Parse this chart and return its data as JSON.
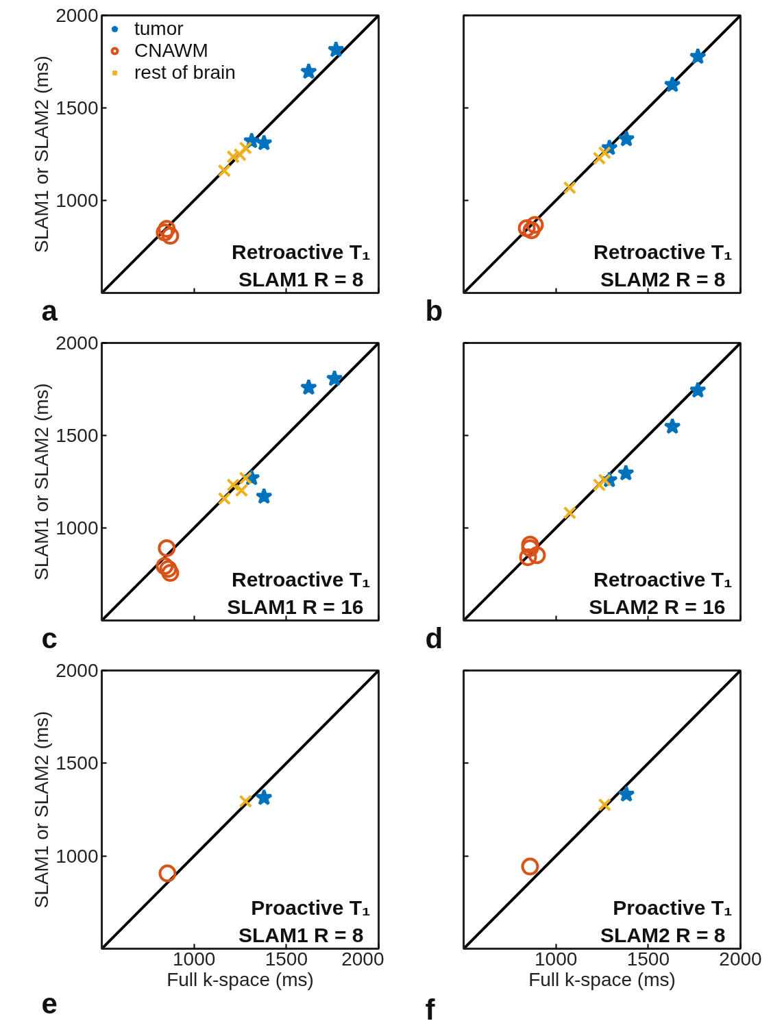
{
  "chart_data": [
    {
      "type": "scatter",
      "ylabel": "SLAM1 or SLAM2 (ms)",
      "xlim": [
        500,
        2000
      ],
      "ylim": [
        500,
        2000
      ],
      "xticks": [
        1000,
        1500,
        2000
      ],
      "yticks": [
        1000,
        1500,
        2000
      ],
      "tick_labels": "y",
      "grid": false,
      "legend": "top left",
      "annotations": [
        "Retroactive T₁",
        "SLAM1 R = 8",
        "a"
      ],
      "series": [
        {
          "name": "tumor",
          "color": "#0072bd",
          "marker": "star",
          "x": [
            1769,
            1621,
            1312,
            1379
          ],
          "values": [
            1814,
            1696,
            1321,
            1310
          ]
        },
        {
          "name": "CNAWM",
          "color": "#d95319",
          "marker": "circle",
          "x": [
            852,
            871,
            841
          ],
          "values": [
            846,
            809,
            827
          ]
        },
        {
          "name": "rest of brain",
          "color": "#edb120",
          "marker": "cross",
          "x": [
            1164,
            1212,
            1249,
            1279
          ],
          "values": [
            1161,
            1236,
            1247,
            1284
          ]
        },
        {
          "type": "line",
          "color": "#000000",
          "x": [
            500,
            2000
          ],
          "values": [
            500,
            2000
          ]
        }
      ]
    },
    {
      "type": "scatter",
      "xlim": [
        500,
        2000
      ],
      "ylim": [
        500,
        2000
      ],
      "xticks": [
        1000,
        1500,
        2000
      ],
      "yticks": [
        1000,
        1500,
        2000
      ],
      "tick_labels": false,
      "grid": false,
      "legend": false,
      "annotations": [
        "Retroactive T₁",
        "SLAM2 R = 8",
        "b"
      ],
      "series": [
        {
          "color": "#0072bd",
          "marker": "star",
          "x": [
            1769,
            1631,
            1382,
            1290
          ],
          "values": [
            1777,
            1625,
            1332,
            1284
          ]
        },
        {
          "color": "#d95319",
          "marker": "circle",
          "x": [
            842,
            886,
            868
          ],
          "values": [
            850,
            868,
            839
          ]
        },
        {
          "color": "#edb120",
          "marker": "cross",
          "x": [
            1075,
            1235,
            1264
          ],
          "values": [
            1069,
            1228,
            1258
          ]
        },
        {
          "type": "line",
          "color": "#000000",
          "x": [
            500,
            2000
          ],
          "values": [
            500,
            2000
          ]
        }
      ]
    },
    {
      "type": "scatter",
      "ylabel": "SLAM1 or SLAM2 (ms)",
      "xlim": [
        500,
        2000
      ],
      "ylim": [
        500,
        2000
      ],
      "xticks": [
        1000,
        1500,
        2000
      ],
      "yticks": [
        1000,
        1500,
        2000
      ],
      "tick_labels": "y",
      "grid": false,
      "legend": false,
      "annotations": [
        "Retroactive T₁",
        "SLAM1 R = 16",
        "c"
      ],
      "series": [
        {
          "color": "#0072bd",
          "marker": "star",
          "x": [
            1761,
            1621,
            1312,
            1379
          ],
          "values": [
            1807,
            1759,
            1270,
            1170
          ]
        },
        {
          "color": "#d95319",
          "marker": "circle",
          "x": [
            852,
            841,
            871,
            860
          ],
          "values": [
            891,
            794,
            757,
            779
          ]
        },
        {
          "color": "#edb120",
          "marker": "cross",
          "x": [
            1164,
            1212,
            1257,
            1279
          ],
          "values": [
            1159,
            1233,
            1203,
            1270
          ]
        },
        {
          "type": "line",
          "color": "#000000",
          "x": [
            500,
            2000
          ],
          "values": [
            500,
            2000
          ]
        }
      ]
    },
    {
      "type": "scatter",
      "xlim": [
        500,
        2000
      ],
      "ylim": [
        500,
        2000
      ],
      "xticks": [
        1000,
        1500,
        2000
      ],
      "yticks": [
        1000,
        1500,
        2000
      ],
      "tick_labels": false,
      "grid": false,
      "legend": false,
      "annotations": [
        "Retroactive T₁",
        "SLAM2 R = 16",
        "d"
      ],
      "series": [
        {
          "color": "#0072bd",
          "marker": "star",
          "x": [
            1769,
            1631,
            1379,
            1290
          ],
          "values": [
            1744,
            1548,
            1296,
            1259
          ]
        },
        {
          "color": "#d95319",
          "marker": "circle",
          "x": [
            860,
            849,
            897,
            860
          ],
          "values": [
            910,
            842,
            853,
            891
          ]
        },
        {
          "color": "#edb120",
          "marker": "cross",
          "x": [
            1075,
            1235,
            1264
          ],
          "values": [
            1082,
            1233,
            1259
          ]
        },
        {
          "type": "line",
          "color": "#000000",
          "x": [
            500,
            2000
          ],
          "values": [
            500,
            2000
          ]
        }
      ]
    },
    {
      "type": "scatter",
      "xlabel": "Full k-space (ms)",
      "ylabel": "SLAM1 or SLAM2 (ms)",
      "xlim": [
        500,
        2000
      ],
      "ylim": [
        500,
        2000
      ],
      "xticks": [
        1000,
        1500,
        2000
      ],
      "yticks": [
        1000,
        1500,
        2000
      ],
      "grid": false,
      "legend": false,
      "annotations": [
        "Proactive T₁",
        "SLAM1 R = 8",
        "e"
      ],
      "series": [
        {
          "color": "#0072bd",
          "marker": "star",
          "x": [
            1379
          ],
          "values": [
            1314
          ]
        },
        {
          "color": "#d95319",
          "marker": "circle",
          "x": [
            856
          ],
          "values": [
            906
          ]
        },
        {
          "color": "#edb120",
          "marker": "cross",
          "x": [
            1279
          ],
          "values": [
            1295
          ]
        },
        {
          "type": "line",
          "color": "#000000",
          "x": [
            500,
            2000
          ],
          "values": [
            500,
            2000
          ]
        }
      ]
    },
    {
      "type": "scatter",
      "xlabel": "Full k-space (ms)",
      "xlim": [
        500,
        2000
      ],
      "ylim": [
        500,
        2000
      ],
      "xticks": [
        1000,
        1500,
        2000
      ],
      "yticks": [
        1000,
        1500,
        2000
      ],
      "tick_labels": "x",
      "grid": false,
      "legend": false,
      "annotations": [
        "Proactive T₁",
        "SLAM2 R = 8",
        "f"
      ],
      "series": [
        {
          "color": "#0072bd",
          "marker": "star",
          "x": [
            1382
          ],
          "values": [
            1332
          ]
        },
        {
          "color": "#d95319",
          "marker": "circle",
          "x": [
            860
          ],
          "values": [
            943
          ]
        },
        {
          "color": "#edb120",
          "marker": "cross",
          "x": [
            1264
          ],
          "values": [
            1276
          ]
        },
        {
          "type": "line",
          "color": "#000000",
          "x": [
            500,
            2000
          ],
          "values": [
            500,
            2000
          ]
        }
      ]
    }
  ]
}
